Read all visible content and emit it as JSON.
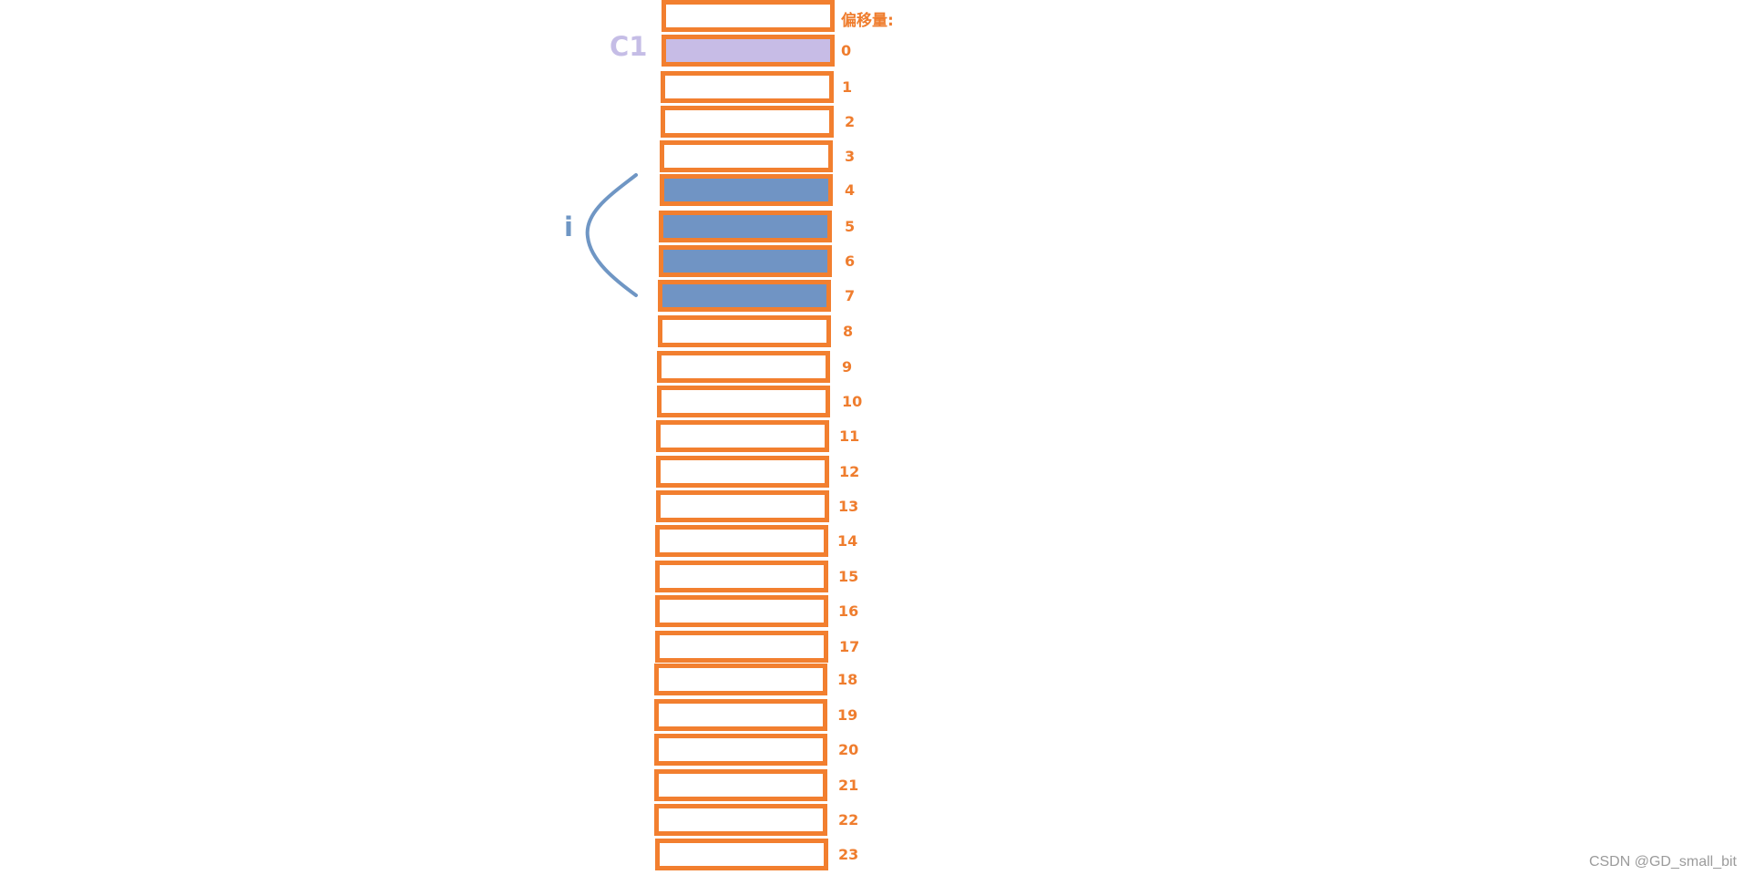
{
  "header": {
    "offset_label": "偏移量:"
  },
  "labels": {
    "c1": "C1",
    "i": "i"
  },
  "colors": {
    "border": "#f27f2f",
    "offset_text": "#ef7d2e",
    "empty": "#ffffff",
    "c1_fill": "#c7bce6",
    "i_fill": "#7094c4",
    "c1_label": "#c5bde6",
    "i_label": "#6f96c4"
  },
  "cells": [
    {
      "offset": "",
      "fill": "empty"
    },
    {
      "offset": "0",
      "fill": "c1"
    },
    {
      "offset": "1",
      "fill": "empty"
    },
    {
      "offset": "2",
      "fill": "empty"
    },
    {
      "offset": "3",
      "fill": "empty"
    },
    {
      "offset": "4",
      "fill": "i"
    },
    {
      "offset": "5",
      "fill": "i"
    },
    {
      "offset": "6",
      "fill": "i"
    },
    {
      "offset": "7",
      "fill": "i"
    },
    {
      "offset": "8",
      "fill": "empty"
    },
    {
      "offset": "9",
      "fill": "empty"
    },
    {
      "offset": "10",
      "fill": "empty"
    },
    {
      "offset": "11",
      "fill": "empty"
    },
    {
      "offset": "12",
      "fill": "empty"
    },
    {
      "offset": "13",
      "fill": "empty"
    },
    {
      "offset": "14",
      "fill": "empty"
    },
    {
      "offset": "15",
      "fill": "empty"
    },
    {
      "offset": "16",
      "fill": "empty"
    },
    {
      "offset": "17",
      "fill": "empty"
    },
    {
      "offset": "18",
      "fill": "empty"
    },
    {
      "offset": "19",
      "fill": "empty"
    },
    {
      "offset": "20",
      "fill": "empty"
    },
    {
      "offset": "21",
      "fill": "empty"
    },
    {
      "offset": "22",
      "fill": "empty"
    },
    {
      "offset": "23",
      "fill": "empty"
    }
  ],
  "watermark": "CSDN @GD_small_bit"
}
